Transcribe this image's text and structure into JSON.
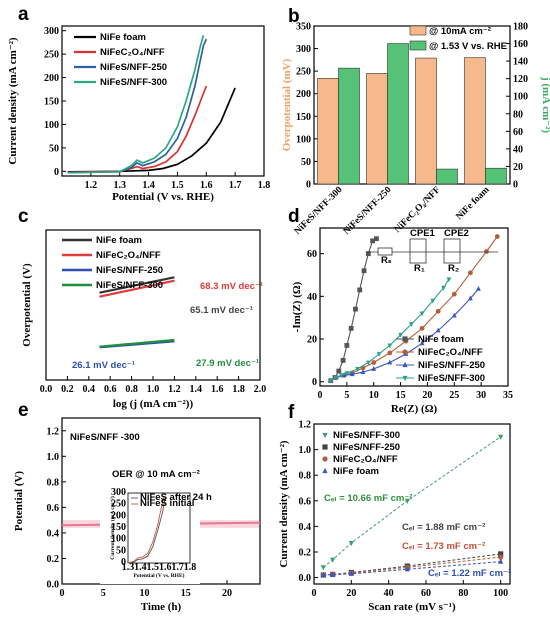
{
  "chart_data": [
    {
      "panel": "a",
      "type": "line",
      "xlabel": "Potential (V vs. RHE)",
      "ylabel": "Current density (mA cm⁻²)",
      "xlim": [
        1.1,
        1.8
      ],
      "ylim": [
        -10,
        310
      ],
      "xticks": [
        1.2,
        1.3,
        1.4,
        1.5,
        1.6,
        1.7,
        1.8
      ],
      "yticks": [
        0,
        50,
        100,
        150,
        200,
        250,
        300
      ],
      "legend": "top-left",
      "series": [
        {
          "name": "NiFe foam",
          "color": "#000000",
          "points": [
            [
              1.12,
              -1
            ],
            [
              1.3,
              0
            ],
            [
              1.4,
              2
            ],
            [
              1.45,
              6
            ],
            [
              1.5,
              15
            ],
            [
              1.55,
              33
            ],
            [
              1.6,
              60
            ],
            [
              1.65,
              105
            ],
            [
              1.7,
              178
            ]
          ]
        },
        {
          "name": "NiFeC₂O₄/NFF",
          "color": "#d63333",
          "points": [
            [
              1.12,
              -2
            ],
            [
              1.3,
              0
            ],
            [
              1.34,
              6
            ],
            [
              1.36,
              10
            ],
            [
              1.38,
              6
            ],
            [
              1.42,
              10
            ],
            [
              1.46,
              20
            ],
            [
              1.5,
              42
            ],
            [
              1.53,
              75
            ],
            [
              1.56,
              118
            ],
            [
              1.58,
              150
            ],
            [
              1.6,
              182
            ]
          ]
        },
        {
          "name": "NiFeS/NFF-250",
          "color": "#2f5f9e",
          "points": [
            [
              1.12,
              -3
            ],
            [
              1.3,
              -1
            ],
            [
              1.34,
              8
            ],
            [
              1.36,
              18
            ],
            [
              1.38,
              12
            ],
            [
              1.42,
              20
            ],
            [
              1.46,
              36
            ],
            [
              1.5,
              70
            ],
            [
              1.53,
              115
            ],
            [
              1.56,
              180
            ],
            [
              1.59,
              268
            ],
            [
              1.6,
              282
            ]
          ]
        },
        {
          "name": "NiFeS/NFF-300",
          "color": "#2ca77f",
          "points": [
            [
              1.12,
              -3
            ],
            [
              1.3,
              -1
            ],
            [
              1.34,
              12
            ],
            [
              1.36,
              24
            ],
            [
              1.38,
              18
            ],
            [
              1.42,
              28
            ],
            [
              1.46,
              50
            ],
            [
              1.5,
              95
            ],
            [
              1.53,
              150
            ],
            [
              1.56,
              215
            ],
            [
              1.58,
              268
            ],
            [
              1.59,
              290
            ]
          ]
        }
      ]
    },
    {
      "panel": "b",
      "type": "bar",
      "categories": [
        "NiFeS/NFF-300",
        "NiFeS/NFF-250",
        "NiFeC₂O₄/NFF",
        "NiFe foam"
      ],
      "series": [
        {
          "name": "@ 10mA cm⁻²",
          "axis": "left",
          "color": "#f5b98c",
          "values": [
            234,
            245,
            279,
            280
          ]
        },
        {
          "name": "@ 1.53 V vs. RHE",
          "axis": "right",
          "color": "#56c277",
          "values": [
            132,
            160,
            17,
            18
          ]
        }
      ],
      "ylabel": "Overpotential (mV)",
      "ylabel_right": "j (mA cm⁻²)",
      "ylim": [
        0,
        350
      ],
      "ylim_right": [
        0,
        180
      ],
      "yticks": [
        0,
        50,
        100,
        150,
        200,
        250,
        300,
        350
      ],
      "yticks_right": [
        0,
        20,
        40,
        60,
        80,
        100,
        120,
        140,
        160,
        180
      ],
      "legend": "top-right"
    },
    {
      "panel": "c",
      "type": "line",
      "xlabel": "log (j (mA cm⁻²))",
      "ylabel": "Overpotential (V)",
      "xlim": [
        0,
        2.0
      ],
      "xticks": [
        0.0,
        0.2,
        0.4,
        0.6,
        0.8,
        1.0,
        1.2,
        1.4,
        1.6,
        1.8,
        2.0
      ],
      "legend": "top-left",
      "series": [
        {
          "name": "NiFe foam",
          "color": "#333333",
          "points": [
            [
              0.5,
              0.262
            ],
            [
              1.2,
              0.308
            ]
          ]
        },
        {
          "name": "NiFeC₂O₄/NFF",
          "color": "#e03a3a",
          "points": [
            [
              0.5,
              0.25
            ],
            [
              1.2,
              0.298
            ]
          ]
        },
        {
          "name": "NiFeS/NFF-250",
          "color": "#2f4fb0",
          "points": [
            [
              0.5,
              0.098
            ],
            [
              1.2,
              0.116
            ]
          ]
        },
        {
          "name": "NiFeS/NFF-300",
          "color": "#1f8f3f",
          "points": [
            [
              0.5,
              0.1
            ],
            [
              1.2,
              0.12
            ]
          ]
        }
      ],
      "annotations": [
        "68.3 mV dec⁻¹",
        "65.1 mV dec⁻¹",
        "26.1 mV dec⁻¹",
        "27.9 mV dec⁻¹"
      ]
    },
    {
      "panel": "d",
      "type": "scatter",
      "xlabel": "Re(Z) (Ω)",
      "ylabel": "-Im(Z) (Ω)",
      "xlim": [
        0,
        35
      ],
      "ylim": [
        -2,
        72
      ],
      "xticks": [
        0,
        5,
        10,
        15,
        20,
        25,
        30,
        35
      ],
      "yticks": [
        0,
        20,
        40,
        60
      ],
      "legend": "bottom-right",
      "circuit_labels": [
        "CPE1",
        "CPE2",
        "Rₛ",
        "R₁",
        "R₂"
      ],
      "series": [
        {
          "name": "NiFe foam",
          "color": "#555555",
          "marker": "square",
          "points": [
            [
              2,
              0.5
            ],
            [
              2.8,
              2
            ],
            [
              3.5,
              5
            ],
            [
              4.3,
              10
            ],
            [
              5,
              17
            ],
            [
              5.8,
              25
            ],
            [
              6.6,
              34
            ],
            [
              7.4,
              43
            ],
            [
              8.2,
              52
            ],
            [
              9,
              60
            ],
            [
              9.8,
              66
            ],
            [
              10.5,
              67
            ]
          ]
        },
        {
          "name": "NiFeC₂O₄/NFF",
          "color": "#b0603a",
          "marker": "circle",
          "points": [
            [
              2,
              0.5
            ],
            [
              3,
              2
            ],
            [
              4.5,
              3
            ],
            [
              6,
              4
            ],
            [
              8,
              6.5
            ],
            [
              10,
              9
            ],
            [
              13,
              13.5
            ],
            [
              16,
              19
            ],
            [
              19,
              25
            ],
            [
              22,
              33
            ],
            [
              25,
              41
            ],
            [
              28,
              51
            ],
            [
              31,
              61
            ],
            [
              33,
              68
            ]
          ]
        },
        {
          "name": "NiFeS/NFF-250",
          "color": "#3a56c0",
          "marker": "triangle-up",
          "points": [
            [
              2,
              0.5
            ],
            [
              3,
              2
            ],
            [
              4.5,
              3
            ],
            [
              6,
              3.5
            ],
            [
              8,
              4.5
            ],
            [
              10,
              6
            ],
            [
              13,
              9
            ],
            [
              16,
              13
            ],
            [
              19,
              18
            ],
            [
              22,
              24
            ],
            [
              25,
              31
            ],
            [
              28,
              39
            ],
            [
              29.5,
              43.5
            ]
          ]
        },
        {
          "name": "NiFeS/NFF-300",
          "color": "#2f9f8f",
          "marker": "triangle-down",
          "points": [
            [
              2,
              0.5
            ],
            [
              3,
              2
            ],
            [
              4,
              3
            ],
            [
              5,
              4
            ],
            [
              7,
              6
            ],
            [
              9,
              9
            ],
            [
              11,
              13
            ],
            [
              13,
              17
            ],
            [
              15,
              22
            ],
            [
              17,
              27
            ],
            [
              19,
              32
            ],
            [
              21,
              38
            ],
            [
              23,
              44
            ],
            [
              24,
              48
            ]
          ]
        }
      ]
    },
    {
      "panel": "e",
      "type": "line",
      "xlabel": "Time (h)",
      "ylabel": "Potential (V)",
      "xlim": [
        0,
        24
      ],
      "ylim": [
        0,
        1.3
      ],
      "xticks": [
        0,
        5,
        10,
        15,
        20
      ],
      "yticks": [
        0.0,
        0.2,
        0.4,
        0.6,
        0.8,
        1.0,
        1.2
      ],
      "title": "NiFeS/NFF -300",
      "annotation": "OER @ 10 mA cm⁻²",
      "series": [
        {
          "name": "",
          "color": "#e07a90",
          "points": [
            [
              0,
              0.46
            ],
            [
              24,
              0.48
            ]
          ]
        }
      ],
      "inset": {
        "xlabel": "Potential (V vs. RHE)",
        "ylabel": "Current density (mA cm⁻²)",
        "xlim": [
          1.3,
          1.8
        ],
        "ylim": [
          0,
          300
        ],
        "xticks": [
          "1.3",
          "1.4",
          "1.5",
          "1.6",
          "1.7",
          "1.8"
        ],
        "yticks": [
          "0",
          "50",
          "100",
          "150",
          "200",
          "250",
          "300"
        ],
        "legend": [
          "NiFeS after 24 h",
          "NiFeS initial"
        ],
        "series": [
          {
            "name": "NiFeS after 24 h",
            "color": "#555555",
            "points": [
              [
                1.3,
                0
              ],
              [
                1.35,
                5
              ],
              [
                1.38,
                15
              ],
              [
                1.42,
                18
              ],
              [
                1.46,
                30
              ],
              [
                1.5,
                70
              ],
              [
                1.54,
                140
              ],
              [
                1.58,
                220
              ],
              [
                1.6,
                285
              ]
            ]
          },
          {
            "name": "NiFeS initial",
            "color": "#cc5544",
            "points": [
              [
                1.3,
                0
              ],
              [
                1.35,
                8
              ],
              [
                1.38,
                22
              ],
              [
                1.42,
                26
              ],
              [
                1.46,
                42
              ],
              [
                1.5,
                90
              ],
              [
                1.54,
                165
              ],
              [
                1.57,
                240
              ],
              [
                1.59,
                285
              ]
            ]
          }
        ]
      }
    },
    {
      "panel": "f",
      "type": "scatter",
      "xlabel": "Scan rate (mV s⁻¹)",
      "ylabel": "Current density (mA cm⁻²)",
      "xlim": [
        0,
        105
      ],
      "ylim": [
        -0.05,
        1.2
      ],
      "xticks": [
        0,
        20,
        40,
        60,
        80,
        100
      ],
      "yticks": [
        0.0,
        0.2,
        0.4,
        0.6,
        0.8,
        1.0,
        1.2
      ],
      "legend": "top-left",
      "x": [
        5,
        10,
        20,
        50,
        100
      ],
      "series": [
        {
          "name": "NiFeS/NFF-300",
          "color": "#3a9f6f",
          "marker": "triangle-down",
          "values": [
            0.08,
            0.14,
            0.27,
            0.6,
            1.1
          ]
        },
        {
          "name": "NiFeS/NFF-250",
          "color": "#444444",
          "marker": "square",
          "values": [
            0.02,
            0.025,
            0.04,
            0.09,
            0.185
          ]
        },
        {
          "name": "NiFeC₂O₄/NFF",
          "color": "#b0603a",
          "marker": "circle",
          "values": [
            0.02,
            0.025,
            0.035,
            0.08,
            0.16
          ]
        },
        {
          "name": "NiFe foam",
          "color": "#3a56c0",
          "marker": "triangle-up",
          "values": [
            0.02,
            0.022,
            0.03,
            0.065,
            0.125
          ]
        }
      ],
      "annotations": [
        "Cₑₗ = 10.66 mF cm⁻²",
        "Cₑₗ = 1.88 mF cm⁻²",
        "Cₑₗ = 1.73 mF cm⁻²",
        "Cₑₗ = 1.22 mF cm⁻²"
      ]
    }
  ],
  "panels": {
    "a": {
      "letter": "a"
    },
    "b": {
      "letter": "b"
    },
    "c": {
      "letter": "c"
    },
    "d": {
      "letter": "d"
    },
    "e": {
      "letter": "e"
    },
    "f": {
      "letter": "f"
    }
  }
}
